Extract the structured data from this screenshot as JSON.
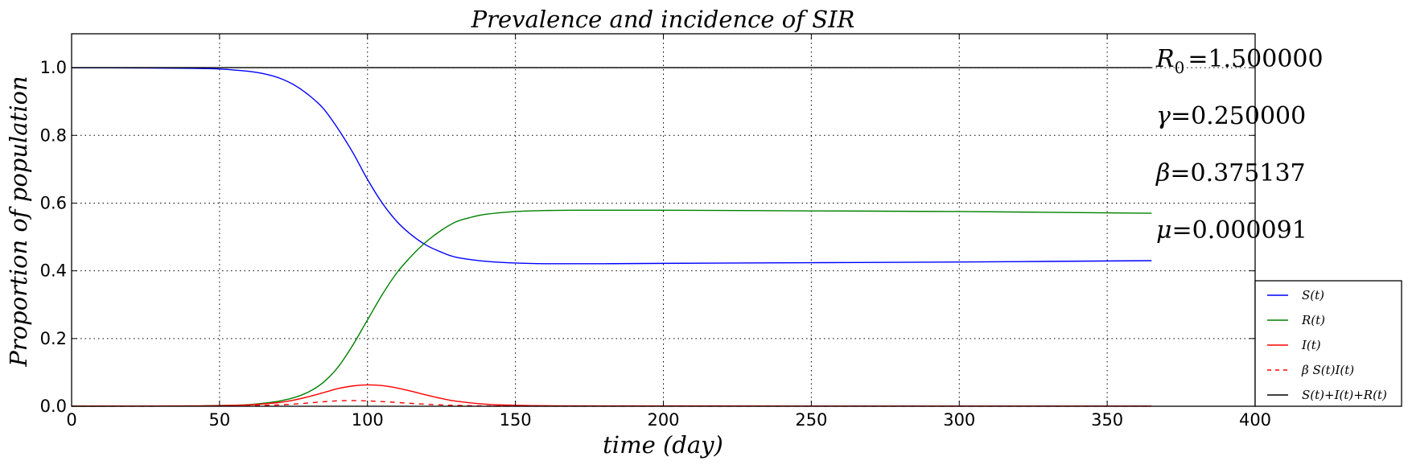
{
  "chart_data": {
    "type": "line",
    "title": "Prevalence and incidence of SIR",
    "xlabel": "time (day)",
    "ylabel": "Proportion of population",
    "xlim": [
      0,
      400
    ],
    "ylim": [
      0,
      1.1
    ],
    "xticks": [
      0,
      50,
      100,
      150,
      200,
      250,
      300,
      350,
      400
    ],
    "yticks": [
      0.0,
      0.2,
      0.4,
      0.6,
      0.8,
      1.0
    ],
    "xtick_labels": [
      "0",
      "50",
      "100",
      "150",
      "200",
      "250",
      "300",
      "350",
      "400"
    ],
    "ytick_labels": [
      "0.0",
      "0.2",
      "0.4",
      "0.6",
      "0.8",
      "1.0"
    ],
    "grid": true,
    "legend_position": "lower-right-outside",
    "annotations": [
      {
        "symbol": "R",
        "sub": "0",
        "text": "=1.500000"
      },
      {
        "symbol": "γ",
        "sub": "",
        "text": "=0.250000"
      },
      {
        "symbol": "β",
        "sub": "",
        "text": "=0.375137"
      },
      {
        "symbol": "μ",
        "sub": "",
        "text": "=0.000091"
      }
    ],
    "series": [
      {
        "name": "S(t)",
        "color": "#0000ff",
        "dash": "solid",
        "x": [
          0,
          20,
          40,
          50,
          55,
          60,
          65,
          70,
          75,
          80,
          85,
          90,
          95,
          100,
          105,
          110,
          115,
          120,
          125,
          130,
          140,
          150,
          160,
          170,
          180,
          200,
          250,
          300,
          365
        ],
        "y": [
          0.9995,
          0.9993,
          0.998,
          0.996,
          0.993,
          0.989,
          0.982,
          0.97,
          0.95,
          0.92,
          0.88,
          0.82,
          0.75,
          0.67,
          0.6,
          0.545,
          0.505,
          0.475,
          0.455,
          0.44,
          0.428,
          0.423,
          0.421,
          0.421,
          0.421,
          0.422,
          0.424,
          0.426,
          0.43
        ]
      },
      {
        "name": "R(t)",
        "color": "#008000",
        "dash": "solid",
        "x": [
          0,
          40,
          55,
          60,
          65,
          70,
          75,
          80,
          85,
          90,
          95,
          100,
          105,
          110,
          115,
          120,
          125,
          130,
          135,
          140,
          150,
          160,
          170,
          200,
          250,
          300,
          365
        ],
        "y": [
          0.0,
          0.001,
          0.003,
          0.005,
          0.009,
          0.015,
          0.025,
          0.042,
          0.07,
          0.115,
          0.18,
          0.255,
          0.33,
          0.395,
          0.445,
          0.487,
          0.52,
          0.545,
          0.558,
          0.567,
          0.575,
          0.578,
          0.579,
          0.579,
          0.577,
          0.575,
          0.57
        ]
      },
      {
        "name": "I(t)",
        "color": "#ff0000",
        "dash": "solid",
        "x": [
          0,
          40,
          50,
          60,
          65,
          70,
          75,
          80,
          85,
          90,
          95,
          100,
          105,
          110,
          115,
          120,
          125,
          130,
          140,
          150,
          160,
          180,
          250,
          365
        ],
        "y": [
          0.0005,
          0.001,
          0.002,
          0.004,
          0.007,
          0.011,
          0.018,
          0.028,
          0.04,
          0.052,
          0.06,
          0.063,
          0.061,
          0.054,
          0.044,
          0.033,
          0.023,
          0.015,
          0.006,
          0.003,
          0.0015,
          0.001,
          0.0008,
          0.0008
        ]
      },
      {
        "name": "β S(t)I(t)",
        "color": "#ff0000",
        "dash": "dashed",
        "x": [
          0,
          40,
          50,
          60,
          65,
          70,
          75,
          80,
          85,
          90,
          95,
          100,
          105,
          110,
          115,
          120,
          125,
          130,
          140,
          150,
          160,
          365
        ],
        "y": [
          0.0002,
          0.0004,
          0.0007,
          0.0015,
          0.0026,
          0.004,
          0.0064,
          0.0096,
          0.0132,
          0.016,
          0.0168,
          0.0158,
          0.0138,
          0.0112,
          0.0083,
          0.0059,
          0.0039,
          0.0025,
          0.001,
          0.0004,
          0.0002,
          0.0001
        ]
      },
      {
        "name": "S(t)+I(t)+R(t)",
        "color": "#000000",
        "dash": "solid",
        "x": [
          0,
          365
        ],
        "y": [
          1.0,
          1.0
        ]
      }
    ]
  }
}
